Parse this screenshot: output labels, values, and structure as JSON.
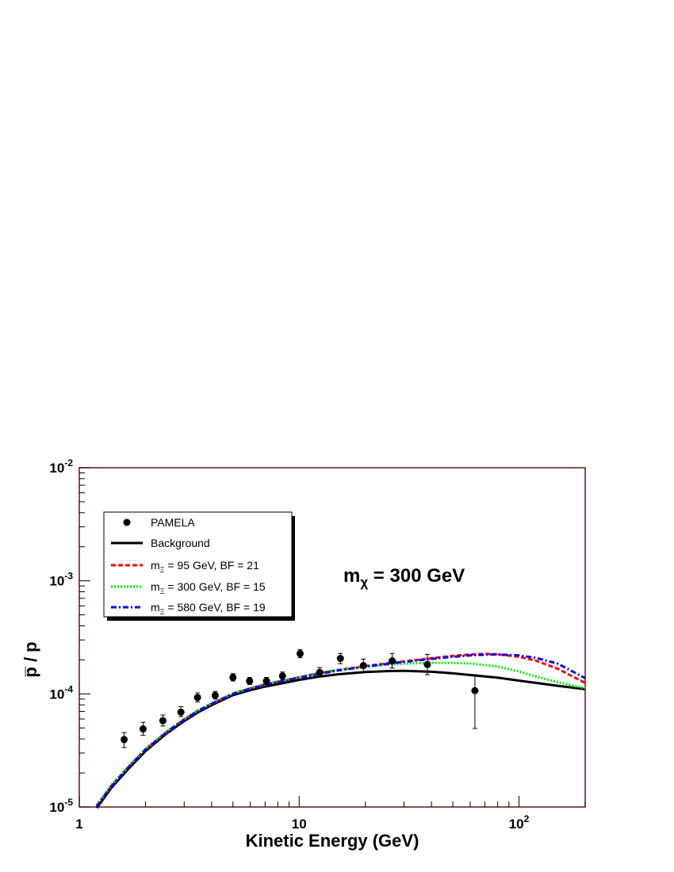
{
  "chart_data": {
    "type": "line",
    "title": "",
    "xlabel": "Kinetic Energy (GeV)",
    "ylabel": "p̅ / p",
    "x_scale": "log",
    "y_scale": "log",
    "xlim": [
      1,
      200
    ],
    "ylim": [
      1e-05,
      0.01
    ],
    "x_tick_labels": [
      {
        "value": 1,
        "label": "1"
      },
      {
        "value": 10,
        "label": "10"
      },
      {
        "value": 100,
        "label": "10",
        "sup": "2"
      }
    ],
    "y_tick_labels": [
      {
        "value": 1e-05,
        "label": "10",
        "sup": "-5"
      },
      {
        "value": 0.0001,
        "label": "10",
        "sup": "-4"
      },
      {
        "value": 0.001,
        "label": "10",
        "sup": "-3"
      },
      {
        "value": 0.01,
        "label": "10",
        "sup": "-2"
      }
    ],
    "grid": false,
    "legend_placement": "top-left",
    "annotation": {
      "main": "m",
      "sub": "χ",
      "rest": " = 300 GeV"
    },
    "frame_color": "#6b0f0f",
    "series": [
      {
        "name": "Background",
        "style": "solid",
        "color": "#000000",
        "x": [
          1.2,
          1.4,
          1.7,
          2.0,
          2.5,
          3.0,
          3.5,
          4.0,
          5.0,
          6.0,
          7.0,
          8.0,
          10,
          12,
          15,
          20,
          25,
          30,
          40,
          50,
          60,
          80,
          100,
          120,
          150,
          200
        ],
        "y": [
          9.8e-06,
          1.48e-05,
          2.25e-05,
          3.12e-05,
          4.48e-05,
          5.75e-05,
          6.95e-05,
          7.95e-05,
          9.75e-05,
          0.000108,
          0.000116,
          0.000122,
          0.000133,
          0.000141,
          0.000149,
          0.000156,
          0.000159,
          0.00016,
          0.000157,
          0.000152,
          0.000147,
          0.000139,
          0.000131,
          0.000125,
          0.000118,
          0.00011
        ]
      },
      {
        "name_main": "m",
        "name_sub": "Ξ",
        "name_rest": " = 95 GeV, BF = 21",
        "style": "dashed",
        "color": "#ff0000",
        "x": [
          1.2,
          1.4,
          1.7,
          2.0,
          2.5,
          3.0,
          3.5,
          4.0,
          5.0,
          6.0,
          7.0,
          8.0,
          10,
          12,
          15,
          20,
          25,
          30,
          40,
          50,
          60,
          70,
          80,
          100,
          120,
          150,
          200
        ],
        "y": [
          1.02e-05,
          1.54e-05,
          2.33e-05,
          3.23e-05,
          4.62e-05,
          5.95e-05,
          7.18e-05,
          8.2e-05,
          0.0001005,
          0.000112,
          0.000121,
          0.000128,
          0.00014,
          0.000151,
          0.000163,
          0.000176,
          0.000186,
          0.000194,
          0.000207,
          0.000217,
          0.000223,
          0.000226,
          0.000224,
          0.000213,
          0.000196,
          0.000167,
          0.000125
        ]
      },
      {
        "name_main": "m",
        "name_sub": "Ξ",
        "name_rest": " = 300 GeV, BF = 15",
        "style": "dotted",
        "color": "#00ee00",
        "x": [
          1.2,
          1.4,
          1.7,
          2.0,
          2.5,
          3.0,
          3.5,
          4.0,
          5.0,
          6.0,
          7.0,
          8.0,
          10,
          12,
          15,
          20,
          25,
          30,
          40,
          50,
          60,
          80,
          100,
          120,
          150,
          200
        ],
        "y": [
          1.04e-05,
          1.57e-05,
          2.37e-05,
          3.28e-05,
          4.68e-05,
          6.01e-05,
          7.24e-05,
          8.26e-05,
          0.000101,
          0.000113,
          0.000122,
          0.000129,
          0.000141,
          0.000152,
          0.000163,
          0.000174,
          0.000181,
          0.000185,
          0.000188,
          0.000188,
          0.000186,
          0.000175,
          0.000158,
          0.000142,
          0.000127,
          0.000112
        ]
      },
      {
        "name_main": "m",
        "name_sub": "Ξ",
        "name_rest": " = 580 GeV, BF = 19",
        "style": "dashdot",
        "color": "#0000ff",
        "x": [
          1.2,
          1.4,
          1.7,
          2.0,
          2.5,
          3.0,
          3.5,
          4.0,
          5.0,
          6.0,
          7.0,
          8.0,
          10,
          12,
          15,
          20,
          25,
          30,
          40,
          50,
          60,
          70,
          80,
          100,
          120,
          150,
          200
        ],
        "y": [
          1.01e-05,
          1.52e-05,
          2.31e-05,
          3.2e-05,
          4.58e-05,
          5.9e-05,
          7.12e-05,
          8.14e-05,
          9.98e-05,
          0.000111,
          0.00012,
          0.000127,
          0.000139,
          0.000149,
          0.000161,
          0.000174,
          0.000184,
          0.000192,
          0.000204,
          0.000213,
          0.000219,
          0.000222,
          0.000223,
          0.000219,
          0.000208,
          0.000185,
          0.000138
        ]
      }
    ],
    "points": {
      "name": "PAMELA",
      "color": "#000000",
      "data": [
        {
          "x": 1.6,
          "y": 3.95e-05,
          "lo": 3.35e-05,
          "hi": 4.55e-05
        },
        {
          "x": 1.95,
          "y": 4.9e-05,
          "lo": 4.3e-05,
          "hi": 5.6e-05
        },
        {
          "x": 2.4,
          "y": 5.8e-05,
          "lo": 5.2e-05,
          "hi": 6.5e-05
        },
        {
          "x": 2.9,
          "y": 6.9e-05,
          "lo": 6.3e-05,
          "hi": 7.7e-05
        },
        {
          "x": 3.45,
          "y": 9.3e-05,
          "lo": 8.5e-05,
          "hi": 0.000102
        },
        {
          "x": 4.15,
          "y": 9.7e-05,
          "lo": 9e-05,
          "hi": 0.000105
        },
        {
          "x": 5.0,
          "y": 0.00014,
          "lo": 0.00013,
          "hi": 0.000151
        },
        {
          "x": 5.95,
          "y": 0.00013,
          "lo": 0.000121,
          "hi": 0.00014
        },
        {
          "x": 7.1,
          "y": 0.00013,
          "lo": 0.000121,
          "hi": 0.00014
        },
        {
          "x": 8.4,
          "y": 0.000144,
          "lo": 0.000133,
          "hi": 0.000156
        },
        {
          "x": 10.1,
          "y": 0.000227,
          "lo": 0.000209,
          "hi": 0.000246
        },
        {
          "x": 12.4,
          "y": 0.000155,
          "lo": 0.000141,
          "hi": 0.000171
        },
        {
          "x": 15.4,
          "y": 0.000206,
          "lo": 0.000185,
          "hi": 0.000228
        },
        {
          "x": 19.6,
          "y": 0.000178,
          "lo": 0.000157,
          "hi": 0.000203
        },
        {
          "x": 26.5,
          "y": 0.000196,
          "lo": 0.000169,
          "hi": 0.000228
        },
        {
          "x": 38.3,
          "y": 0.000182,
          "lo": 0.000148,
          "hi": 0.000224
        },
        {
          "x": 63.0,
          "y": 0.000107,
          "lo": 4.95e-05,
          "hi": 0.000148
        }
      ]
    }
  }
}
